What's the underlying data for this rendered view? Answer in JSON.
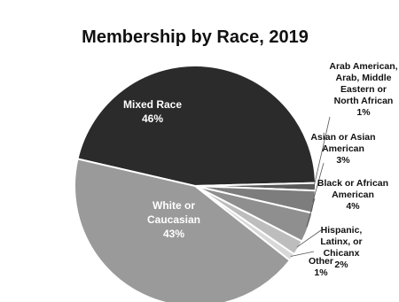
{
  "chart_data": {
    "type": "pie",
    "title": "Membership by Race, 2019",
    "slices": [
      {
        "name": "Mixed Race",
        "value": 46,
        "label": [
          "Mixed Race",
          "46%"
        ],
        "color": "#2b2b2b"
      },
      {
        "name": "Arab American, Arab, Middle Eastern or North African",
        "value": 1,
        "label": [
          "Arab American,",
          "Arab, Middle",
          "Eastern or",
          "North African",
          "1%"
        ],
        "color": "#5a5a5a"
      },
      {
        "name": "Asian or Asian American",
        "value": 3,
        "label": [
          "Asian or Asian",
          "American",
          "3%"
        ],
        "color": "#7d7d7d"
      },
      {
        "name": "Black or African American",
        "value": 4,
        "label": [
          "Black or African",
          "American",
          "4%"
        ],
        "color": "#8f8f8f"
      },
      {
        "name": "Hispanic, Latinx, or Chicanx",
        "value": 2,
        "label": [
          "Hispanic,",
          "Latinx, or",
          "Chicanx",
          "2%"
        ],
        "color": "#bdbdbd"
      },
      {
        "name": "Other",
        "value": 1,
        "label": [
          "Other",
          "1%"
        ],
        "color": "#d8d8d8"
      },
      {
        "name": "White or Caucasian",
        "value": 43,
        "label": [
          "White or",
          "Caucasian",
          "43%"
        ],
        "color": "#9a9a9a"
      }
    ]
  }
}
